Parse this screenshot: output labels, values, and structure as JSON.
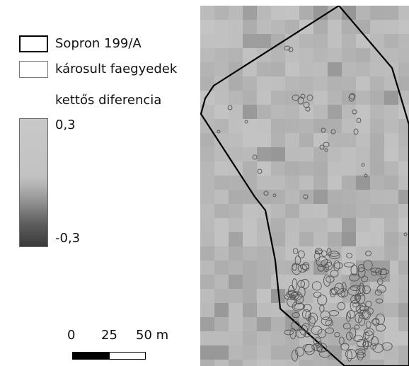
{
  "legend": {
    "boundary_label": "Sopron 199/A",
    "damaged_label": "károsult faegyedek",
    "raster_title": "kettős diferencia",
    "ramp_max": "0,3",
    "ramp_min": "-0,3"
  },
  "scale": {
    "tick_0": "0",
    "tick_1": "25",
    "tick_2": "50 m"
  },
  "colors": {
    "boundary": "#000000",
    "raster_base": "#b6b6b6",
    "ramp_high": "#c9c9c9",
    "ramp_low": "#3a3a3a",
    "crown_outline": "#555555"
  }
}
